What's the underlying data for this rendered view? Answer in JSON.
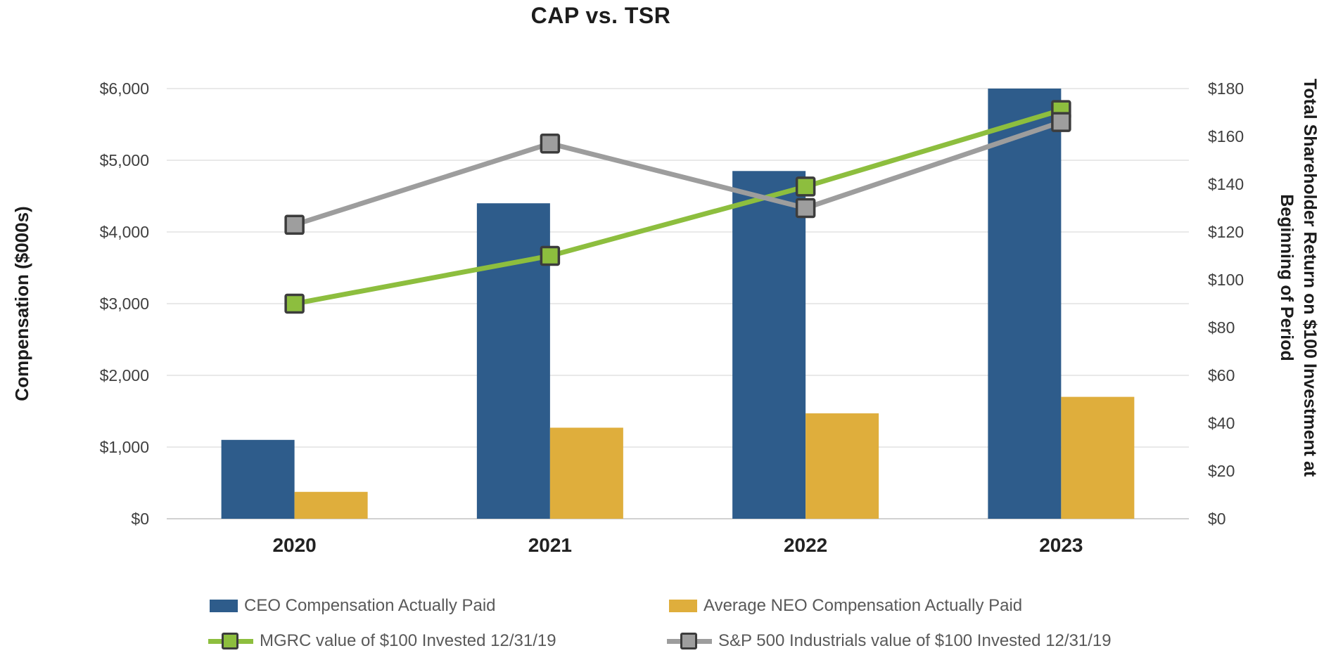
{
  "title": "CAP vs. TSR",
  "chart_data": {
    "type": "combo-bar-line",
    "categories": [
      "2020",
      "2021",
      "2022",
      "2023"
    ],
    "series": [
      {
        "name": "CEO Compensation Actually Paid",
        "type": "bar",
        "axis": "left",
        "color": "#2E5C8B",
        "values": [
          1100,
          4400,
          4850,
          6000
        ]
      },
      {
        "name": "Average NEO Compensation Actually Paid",
        "type": "bar",
        "axis": "left",
        "color": "#DFAE3C",
        "values": [
          375,
          1270,
          1470,
          1700
        ]
      },
      {
        "name": "MGRC value of $100 Invested 12/31/19",
        "type": "line",
        "axis": "right",
        "color": "#8DBE3E",
        "marker_fill": "#8DBE3E",
        "marker_border": "#3C3C3C",
        "values": [
          90,
          110,
          139,
          171
        ]
      },
      {
        "name": "S&P 500 Industrials value of $100 Invested 12/31/19",
        "type": "line",
        "axis": "right",
        "color": "#9D9D9D",
        "marker_fill": "#9E9E9E",
        "marker_border": "#3C3C3C",
        "values": [
          123,
          157,
          130,
          166
        ]
      }
    ],
    "left_axis": {
      "title": "Compensation ($000s)",
      "min": 0,
      "max": 6000,
      "step": 1000,
      "tick_labels": [
        "$0",
        "$1,000",
        "$2,000",
        "$3,000",
        "$4,000",
        "$5,000",
        "$6,000"
      ]
    },
    "right_axis": {
      "title_line1": "Total Shareholder Return on $100 Investment at",
      "title_line2": "Beginning of Period",
      "min": 0,
      "max": 180,
      "step": 20,
      "tick_labels": [
        "$0",
        "$20",
        "$40",
        "$60",
        "$80",
        "$100",
        "$120",
        "$140",
        "$160",
        "$180"
      ]
    },
    "grid": true,
    "legend_position": "bottom",
    "colors": {
      "gridline": "#E2E2E2",
      "baseline": "#C2C2C2",
      "tick_text": "#3F3F3F",
      "legend_text": "#595959",
      "title_text": "#1C1C1C"
    }
  }
}
